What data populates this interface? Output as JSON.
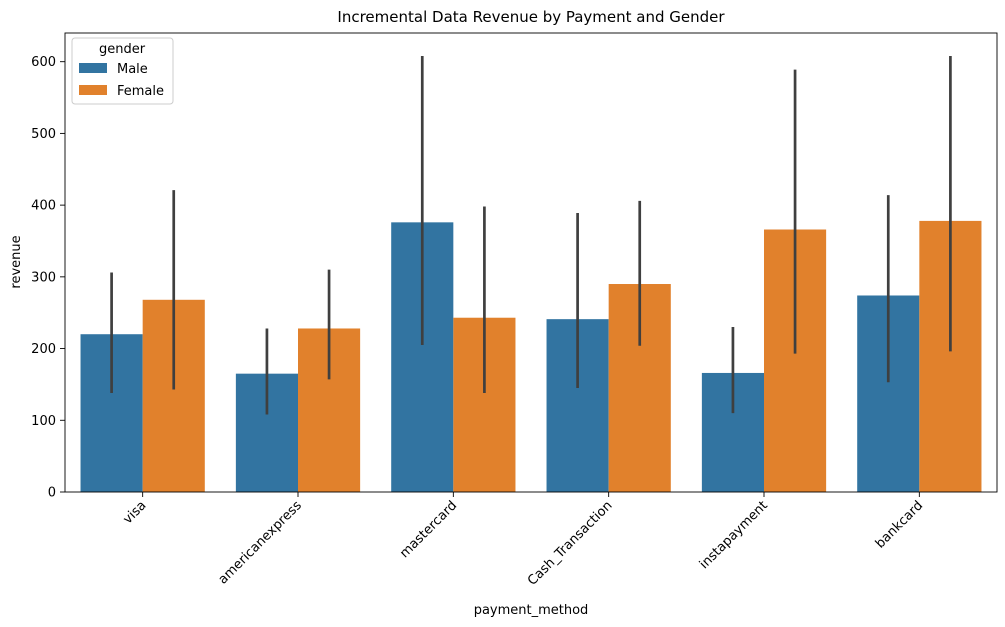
{
  "chart_data": {
    "type": "bar",
    "title": "Incremental Data Revenue by Payment and Gender",
    "xlabel": "payment_method",
    "ylabel": "revenue",
    "ylim": [
      0,
      640
    ],
    "yticks": [
      0,
      100,
      200,
      300,
      400,
      500,
      600
    ],
    "categories": [
      "visa",
      "americanexpress",
      "mastercard",
      "Cash_Transaction",
      "instapayment",
      "bankcard"
    ],
    "legend": {
      "title": "gender",
      "placement": "top-left"
    },
    "series": [
      {
        "name": "Male",
        "color": "#3274a1",
        "values": [
          220,
          165,
          376,
          241,
          166,
          274
        ],
        "ci_low": [
          138,
          108,
          205,
          145,
          110,
          153
        ],
        "ci_high": [
          306,
          228,
          608,
          389,
          230,
          414
        ]
      },
      {
        "name": "Female",
        "color": "#e1812c",
        "values": [
          268,
          228,
          243,
          290,
          366,
          378
        ],
        "ci_low": [
          143,
          157,
          138,
          204,
          193,
          196
        ],
        "ci_high": [
          421,
          310,
          398,
          406,
          589,
          608
        ]
      }
    ],
    "errorbar_color": "#3f3f3f",
    "grid": false
  }
}
